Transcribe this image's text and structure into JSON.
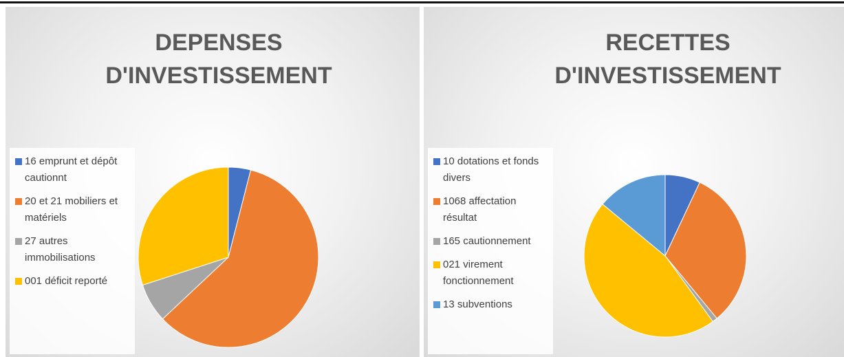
{
  "chart_data": [
    {
      "type": "pie",
      "title": "DEPENSES D'INVESTISSEMENT",
      "categories": [
        "16 emprunt et dépôt cautionnt",
        "20 et 21 mobiliers et matériels",
        "27 autres immobilisations",
        "001 déficit reporté"
      ],
      "values": [
        4,
        59,
        7,
        30
      ],
      "colors": [
        "#4472c4",
        "#ed7d31",
        "#a5a5a5",
        "#ffc000"
      ]
    },
    {
      "type": "pie",
      "title": "RECETTES D'INVESTISSEMENT",
      "categories": [
        "10 dotations et fonds divers",
        "1068 affectation résultat",
        "165 cautionnement",
        "021 virement fonctionnement",
        "13 subventions"
      ],
      "values": [
        7,
        32,
        1,
        46,
        14
      ],
      "colors": [
        "#4472c4",
        "#ed7d31",
        "#a5a5a5",
        "#ffc000",
        "#5b9bd5"
      ]
    }
  ]
}
